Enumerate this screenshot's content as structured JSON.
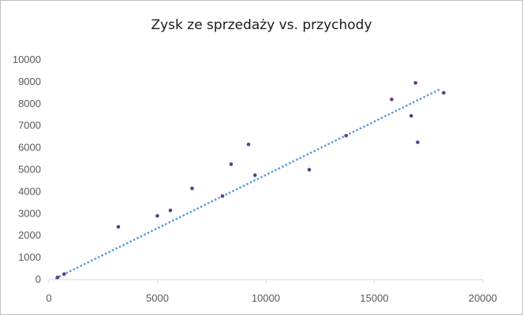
{
  "chart_data": {
    "type": "scatter",
    "title": "Zysk ze sprzedaży vs. przychody",
    "xlabel": "",
    "ylabel": "",
    "xlim": [
      0,
      20000
    ],
    "ylim": [
      0,
      10000
    ],
    "x_ticks": [
      "0",
      "5000",
      "10000",
      "15000",
      "20000"
    ],
    "y_ticks": [
      "0",
      "1000",
      "2000",
      "3000",
      "4000",
      "5000",
      "6000",
      "7000",
      "8000",
      "9000",
      "10000"
    ],
    "grid": false,
    "legend": "none",
    "series": [
      {
        "marker_color": "#5b3f86",
        "points": [
          {
            "x": 400,
            "y": 100
          },
          {
            "x": 700,
            "y": 250
          },
          {
            "x": 3200,
            "y": 2400
          },
          {
            "x": 5000,
            "y": 2900
          },
          {
            "x": 5600,
            "y": 3150
          },
          {
            "x": 6600,
            "y": 4150
          },
          {
            "x": 8000,
            "y": 3800
          },
          {
            "x": 8400,
            "y": 5250
          },
          {
            "x": 9200,
            "y": 6150
          },
          {
            "x": 9500,
            "y": 4750
          },
          {
            "x": 12000,
            "y": 5000
          },
          {
            "x": 13700,
            "y": 6550
          },
          {
            "x": 15800,
            "y": 8200
          },
          {
            "x": 16700,
            "y": 7450
          },
          {
            "x": 16900,
            "y": 8950
          },
          {
            "x": 17000,
            "y": 6250
          },
          {
            "x": 18200,
            "y": 8500
          }
        ]
      }
    ],
    "trendline": {
      "type": "linear",
      "color": "#5b9bd5",
      "style": "dotted",
      "from": {
        "x": 300,
        "y": 50
      },
      "to": {
        "x": 18000,
        "y": 8650
      }
    }
  }
}
